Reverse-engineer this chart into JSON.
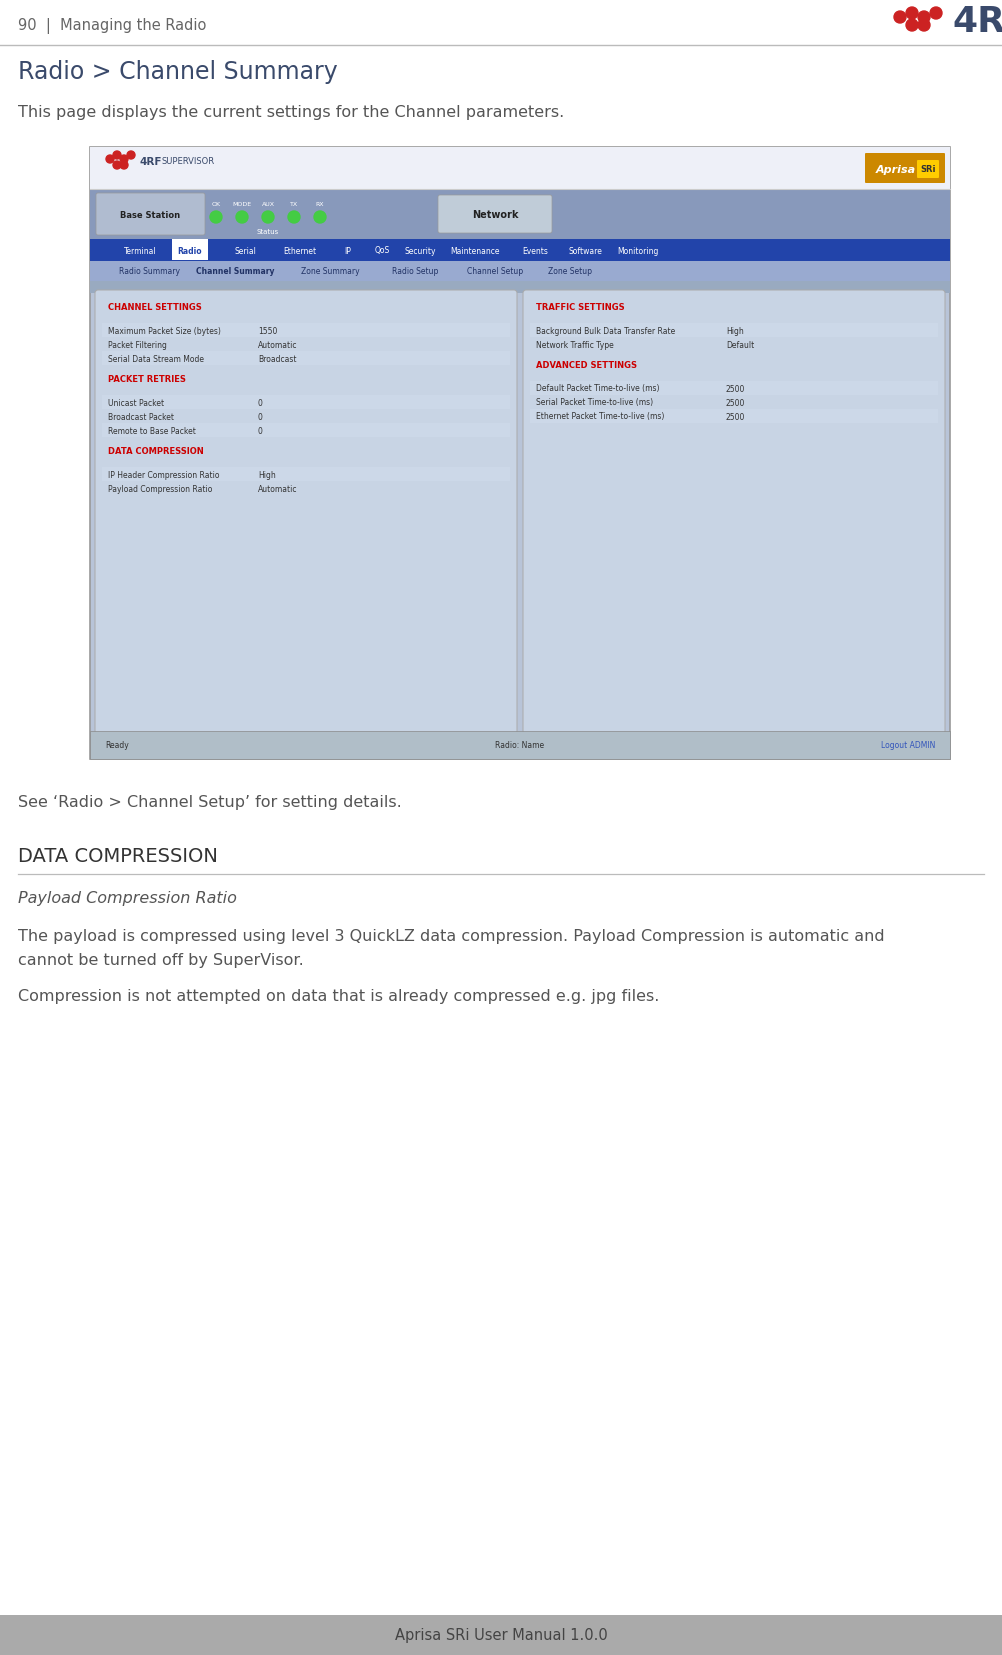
{
  "page_number": "90",
  "header_text": "Managing the Radio",
  "section_title": "Radio > Channel Summary",
  "intro_text": "This page displays the current settings for the Channel parameters.",
  "see_also_text": "See ‘Radio > Channel Setup’ for setting details.",
  "section2_title": "DATA COMPRESSION",
  "subsection_title": "Payload Compression Ratio",
  "body_text1_line1": "The payload is compressed using level 3 QuickLZ data compression. Payload Compression is automatic and",
  "body_text1_line2": "cannot be turned off by SuperVisor.",
  "body_text2": "Compression is not attempted on data that is already compressed e.g. jpg files.",
  "footer_text": "Aprisa SRi User Manual 1.0.0",
  "bg_color": "#ffffff",
  "header_line_color": "#bbbbbb",
  "footer_bg_color": "#aaaaaa",
  "header_fg_color": "#666666",
  "section_title_color": "#3a4a6b",
  "body_text_color": "#555555",
  "section2_title_color": "#333333",
  "logo_red_color": "#cc2222",
  "logo_dark_color": "#3a4a6b",
  "screenshot_outer_bg": "#b8c4d8",
  "screenshot_border": "#999999",
  "sup_header_bg": "#eef0f8",
  "nav_bar_bg": "#2244aa",
  "nav_bar2_bg": "#99aad0",
  "status_bar_bg": "#8899bb",
  "content_area_bg": "#99aac0",
  "panel_bg": "#c8d4e4",
  "panel_inner_bg": "#d8e4f0",
  "panel_row_shaded": "#ccd8e8",
  "panel_section_color": "#cc0000",
  "status_green": "#44cc44",
  "status_gray_box": "#b0bcd0",
  "network_box_bg": "#c0ccd8",
  "footer_bar_bg": "#b0bec8",
  "logout_color": "#3355bb"
}
